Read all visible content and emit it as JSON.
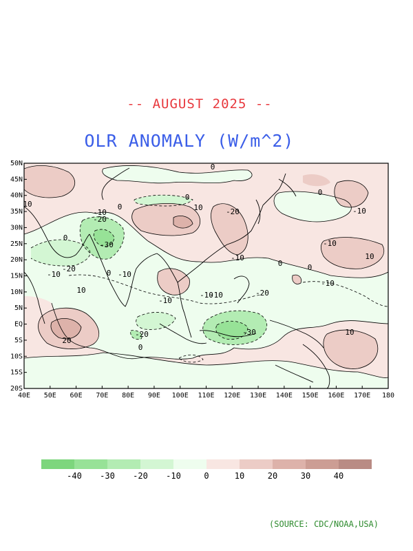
{
  "title": {
    "date": "-- AUGUST 2025 --",
    "main": "OLR ANOMALY (W/m^2)"
  },
  "map": {
    "lon_ticks": [
      "40E",
      "50E",
      "60E",
      "70E",
      "80E",
      "90E",
      "100E",
      "110E",
      "120E",
      "130E",
      "140E",
      "150E",
      "160E",
      "170E",
      "180"
    ],
    "lat_ticks": [
      "50N",
      "45N",
      "40N",
      "35N",
      "30N",
      "25N",
      "20N",
      "15N",
      "10N",
      "5N",
      "EQ",
      "5S",
      "10S",
      "15S",
      "20S"
    ],
    "contour_labels": [
      "0",
      "0",
      "10",
      "-10",
      "-20",
      "0",
      "-30",
      "-20",
      "-10",
      "-10",
      "10",
      "10",
      "0",
      "-10",
      "-20",
      "-30",
      "-20",
      "-10",
      "-10",
      "20",
      "-20",
      "-10",
      "0",
      "0",
      "-10",
      "0",
      "10",
      "-10",
      "0",
      "-10",
      "0",
      "10"
    ]
  },
  "colorbar": {
    "colors": [
      "#7dd67d",
      "#97e297",
      "#b3ecb3",
      "#d3f6d3",
      "#eefdee",
      "#f8e6e2",
      "#ecccc6",
      "#ddb2aa",
      "#cc9d94",
      "#b98b84"
    ],
    "labels": [
      "-40",
      "-30",
      "-20",
      "-10",
      "0",
      "10",
      "20",
      "30",
      "40"
    ]
  },
  "source": "(SOURCE: CDC/NOAA,USA)"
}
